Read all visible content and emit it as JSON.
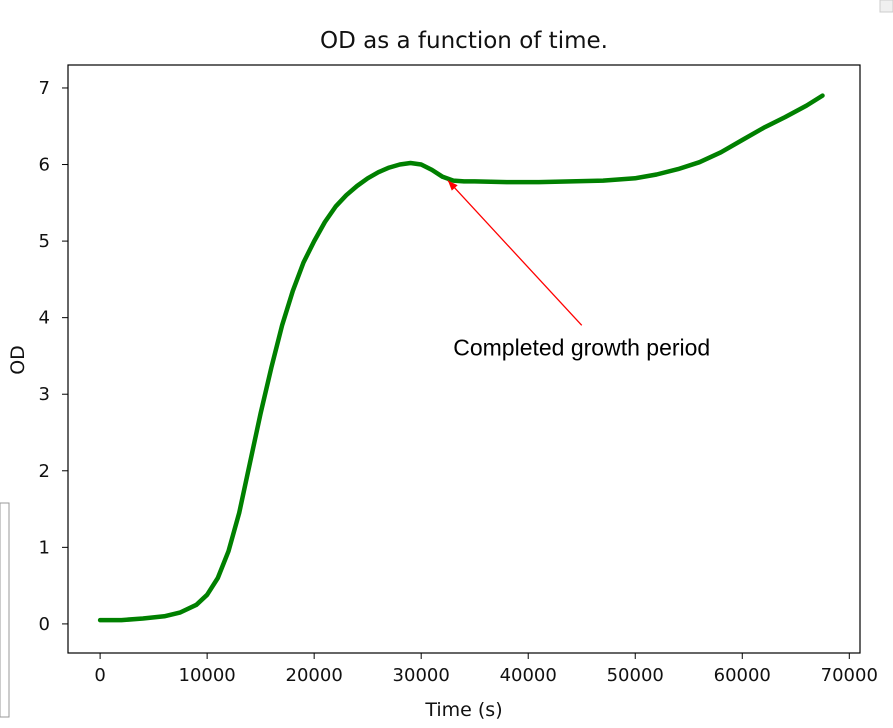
{
  "chart_data": {
    "type": "line",
    "title": "OD as a function of time.",
    "xlabel": "Time (s)",
    "ylabel": "OD",
    "xlim": [
      -3000,
      71000
    ],
    "ylim": [
      -0.38,
      7.3
    ],
    "xticks": [
      0,
      10000,
      20000,
      30000,
      40000,
      50000,
      60000,
      70000
    ],
    "yticks": [
      0,
      1,
      2,
      3,
      4,
      5,
      6,
      7
    ],
    "color": "#008000",
    "series": [
      {
        "name": "OD",
        "x": [
          0,
          2000,
          4000,
          6000,
          7500,
          9000,
          10000,
          11000,
          12000,
          13000,
          14000,
          15000,
          16000,
          17000,
          18000,
          19000,
          20000,
          21000,
          22000,
          23000,
          24000,
          25000,
          26000,
          27000,
          28000,
          29000,
          30000,
          31000,
          32000,
          33000,
          34000,
          35000,
          38000,
          41000,
          44000,
          47000,
          50000,
          52000,
          54000,
          56000,
          58000,
          60000,
          62000,
          64000,
          66000,
          67500
        ],
        "y": [
          0.05,
          0.05,
          0.07,
          0.1,
          0.15,
          0.25,
          0.38,
          0.6,
          0.95,
          1.45,
          2.1,
          2.75,
          3.35,
          3.9,
          4.35,
          4.72,
          5.0,
          5.25,
          5.45,
          5.6,
          5.72,
          5.82,
          5.9,
          5.96,
          6.0,
          6.02,
          6.0,
          5.93,
          5.84,
          5.79,
          5.78,
          5.78,
          5.77,
          5.77,
          5.78,
          5.79,
          5.82,
          5.87,
          5.94,
          6.03,
          6.16,
          6.32,
          6.48,
          6.62,
          6.77,
          6.9
        ]
      }
    ],
    "annotation": {
      "text": "Completed growth period",
      "point": [
        32500,
        5.79
      ],
      "text_anchor_point": [
        45000,
        3.9
      ],
      "arrow_color": "#ff0000"
    }
  }
}
